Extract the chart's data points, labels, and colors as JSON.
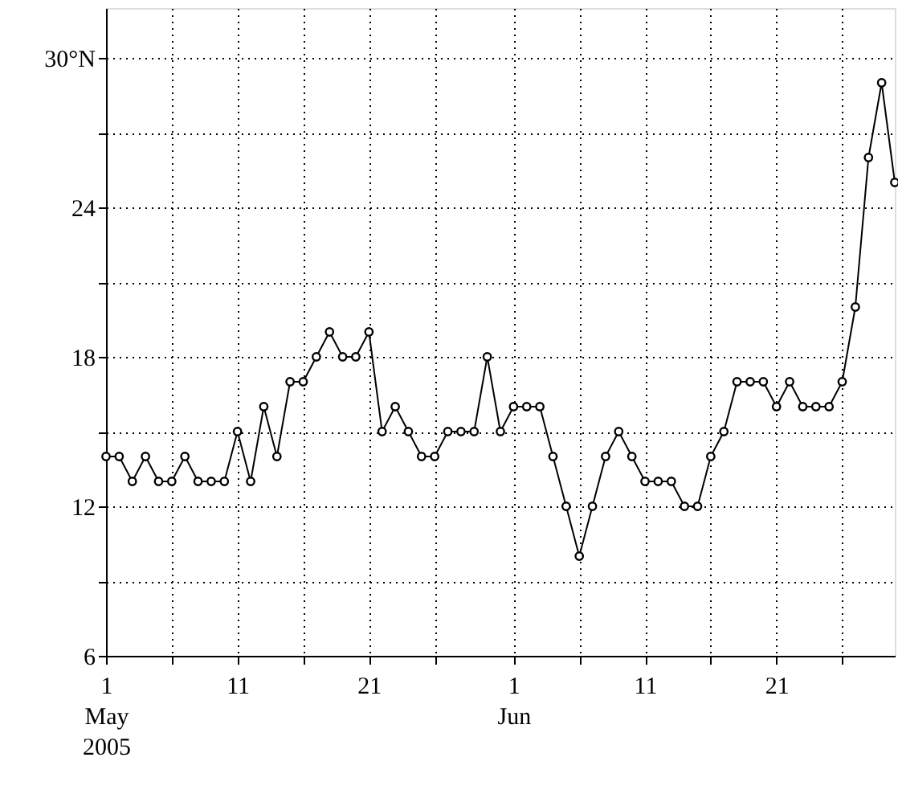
{
  "chart_data": {
    "type": "line",
    "marker": "circle",
    "line_style": "solid",
    "grid": true,
    "x": [
      "2005-05-01",
      "2005-05-02",
      "2005-05-03",
      "2005-05-04",
      "2005-05-05",
      "2005-05-06",
      "2005-05-07",
      "2005-05-08",
      "2005-05-09",
      "2005-05-10",
      "2005-05-11",
      "2005-05-12",
      "2005-05-13",
      "2005-05-14",
      "2005-05-15",
      "2005-05-16",
      "2005-05-17",
      "2005-05-18",
      "2005-05-19",
      "2005-05-20",
      "2005-05-21",
      "2005-05-22",
      "2005-05-23",
      "2005-05-24",
      "2005-05-25",
      "2005-05-26",
      "2005-05-27",
      "2005-05-28",
      "2005-05-29",
      "2005-05-30",
      "2005-05-31",
      "2005-06-01",
      "2005-06-02",
      "2005-06-03",
      "2005-06-04",
      "2005-06-05",
      "2005-06-06",
      "2005-06-07",
      "2005-06-08",
      "2005-06-09",
      "2005-06-10",
      "2005-06-11",
      "2005-06-12",
      "2005-06-13",
      "2005-06-14",
      "2005-06-15",
      "2005-06-16",
      "2005-06-17",
      "2005-06-18",
      "2005-06-19",
      "2005-06-20",
      "2005-06-21",
      "2005-06-22",
      "2005-06-23",
      "2005-06-24",
      "2005-06-25",
      "2005-06-26",
      "2005-06-27",
      "2005-06-28",
      "2005-06-29",
      "2005-06-30"
    ],
    "series": [
      {
        "color": "#000000",
        "values": [
          14,
          14,
          13,
          14,
          13,
          13,
          14,
          13,
          13,
          13,
          15,
          13,
          16,
          14,
          17,
          17,
          18,
          19,
          18,
          18,
          19,
          15,
          16,
          15,
          14,
          14,
          15,
          15,
          15,
          18,
          15,
          16,
          16,
          16,
          14,
          12,
          10,
          12,
          14,
          15,
          14,
          13,
          13,
          13,
          12,
          12,
          14,
          15,
          17,
          17,
          17,
          16,
          17,
          16,
          16,
          16,
          17,
          20,
          26,
          29,
          25
        ]
      }
    ],
    "xlim": [
      "2005-05-01",
      "2005-06-30"
    ],
    "xticks": [
      {
        "value": "2005-05-01",
        "label": "1\nMay\n2005"
      },
      {
        "value": "2005-05-06",
        "label": null
      },
      {
        "value": "2005-05-11",
        "label": "11"
      },
      {
        "value": "2005-05-16",
        "label": null
      },
      {
        "value": "2005-05-21",
        "label": "21"
      },
      {
        "value": "2005-05-26",
        "label": null
      },
      {
        "value": "2005-06-01",
        "label": "1\nJun"
      },
      {
        "value": "2005-06-06",
        "label": null
      },
      {
        "value": "2005-06-11",
        "label": "11"
      },
      {
        "value": "2005-06-16",
        "label": null
      },
      {
        "value": "2005-06-21",
        "label": "21"
      },
      {
        "value": "2005-06-26",
        "label": null
      }
    ],
    "ylim": [
      6,
      32
    ],
    "yticks": [
      6,
      {
        "value": 9,
        "label": null
      },
      12,
      {
        "value": 15,
        "label": null
      },
      18,
      {
        "value": 21,
        "label": null
      },
      24,
      {
        "value": 27,
        "label": null
      },
      {
        "value": 30,
        "label": "30°N"
      }
    ]
  }
}
